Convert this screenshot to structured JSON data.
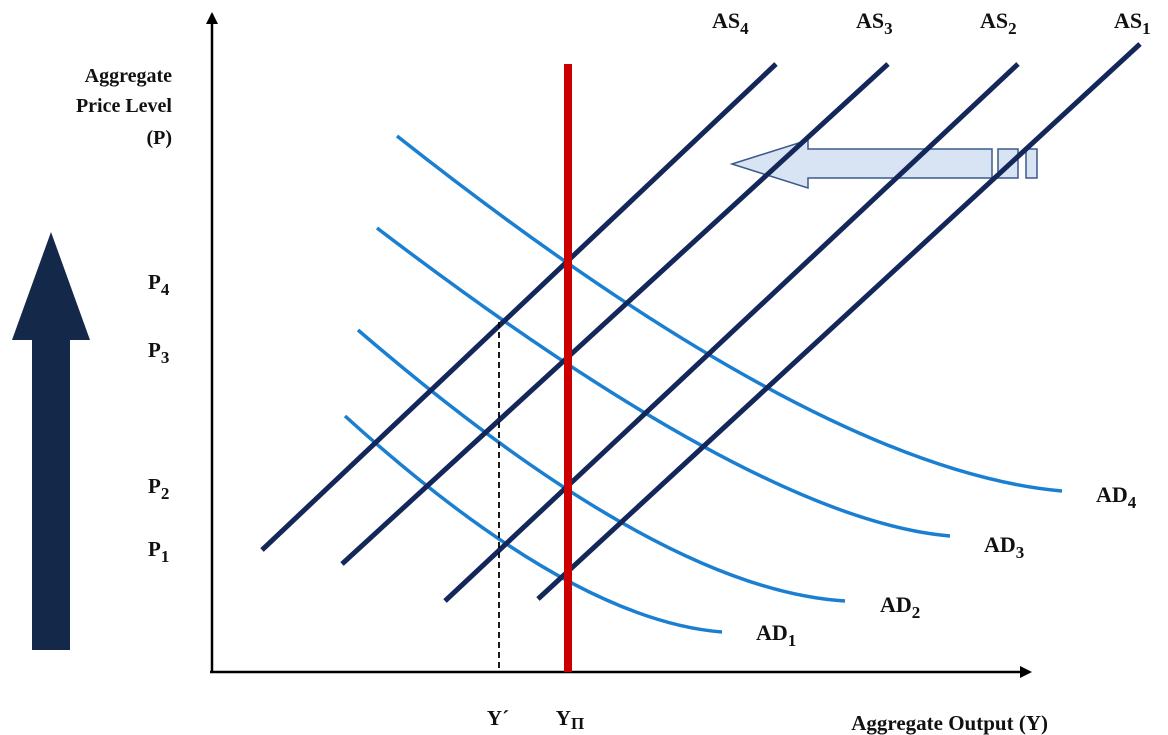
{
  "axes": {
    "y_label_line1": "Aggregate",
    "y_label_line2": "Price Level",
    "y_label_line3": "(P)",
    "x_label": "Aggregate Output (Y)"
  },
  "price_ticks": [
    {
      "base": "P",
      "sub": "4"
    },
    {
      "base": "P",
      "sub": "3"
    },
    {
      "base": "P",
      "sub": "2"
    },
    {
      "base": "P",
      "sub": "1"
    }
  ],
  "output_ticks": {
    "y_prime": "Y´",
    "y_potential_base": "Y",
    "y_potential_sub": "Π"
  },
  "as_curves": [
    {
      "base": "AS",
      "sub": "4"
    },
    {
      "base": "AS",
      "sub": "3"
    },
    {
      "base": "AS",
      "sub": "2"
    },
    {
      "base": "AS",
      "sub": "1"
    }
  ],
  "ad_curves": [
    {
      "base": "AD",
      "sub": "4"
    },
    {
      "base": "AD",
      "sub": "3"
    },
    {
      "base": "AD",
      "sub": "2"
    },
    {
      "base": "AD",
      "sub": "1"
    }
  ],
  "colors": {
    "as_line": "#13275a",
    "ad_line": "#1a7fd0",
    "potential_output": "#cc0000",
    "axis": "#000000",
    "big_arrow": "#14284a",
    "shift_arrow_fill": "#d8e3f3",
    "shift_arrow_stroke": "#3a5a8c"
  }
}
